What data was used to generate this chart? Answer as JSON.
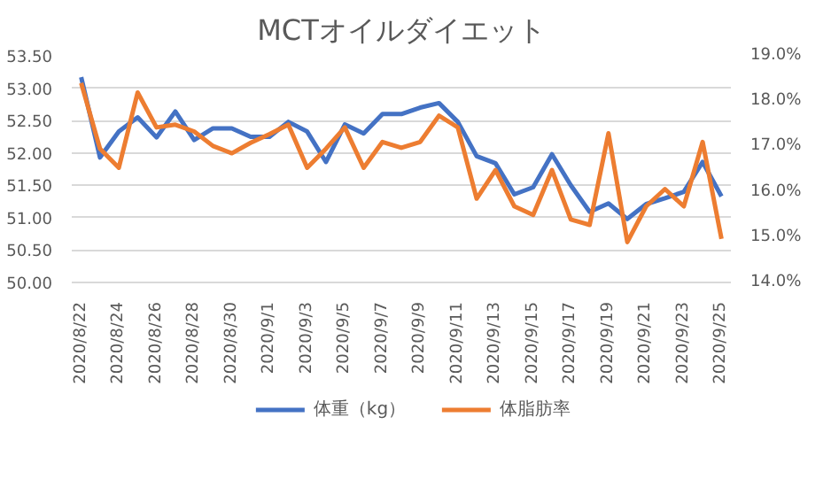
{
  "chart_data": {
    "type": "line",
    "title": "MCTオイルダイエット",
    "categories": [
      "2020/8/22",
      null,
      "2020/8/24",
      null,
      "2020/8/26",
      null,
      "2020/8/28",
      null,
      "2020/8/30",
      null,
      "2020/9/1",
      null,
      "2020/9/3",
      null,
      "2020/9/5",
      null,
      "2020/9/7",
      null,
      "2020/9/9",
      null,
      "2020/9/11",
      null,
      "2020/9/13",
      null,
      "2020/9/15",
      null,
      "2020/9/17",
      null,
      "2020/9/19",
      null,
      "2020/9/21",
      null,
      "2020/9/23",
      null,
      "2020/9/25"
    ],
    "series": [
      {
        "name": "体重（kg）",
        "color": "#4472c4",
        "values": [
          53.17,
          51.93,
          52.33,
          52.55,
          52.24,
          52.64,
          52.2,
          52.38,
          52.38,
          52.25,
          52.25,
          52.48,
          52.33,
          51.86,
          52.44,
          52.3,
          52.6,
          52.6,
          52.7,
          52.77,
          52.48,
          51.95,
          51.84,
          51.36,
          51.47,
          51.98,
          51.5,
          51.09,
          51.22,
          50.98,
          51.21,
          51.3,
          51.4,
          51.86,
          51.33
        ]
      },
      {
        "name": "体脂肪率",
        "color": "#ed7d31",
        "axis": "y2",
        "values": [
          18.4,
          16.95,
          16.53,
          18.19,
          17.42,
          17.48,
          17.33,
          17.01,
          16.85,
          17.08,
          17.27,
          17.48,
          16.53,
          16.95,
          17.42,
          16.53,
          17.1,
          16.97,
          17.1,
          17.68,
          17.42,
          15.85,
          16.48,
          15.68,
          15.49,
          16.48,
          15.39,
          15.27,
          17.29,
          14.89,
          15.68,
          16.06,
          15.68,
          17.1,
          14.96
        ]
      }
    ],
    "ylim": [
      50,
      53.5
    ],
    "yticks": [
      {
        "value": 50,
        "label": "50.00"
      },
      {
        "value": 50.5,
        "label": "50.50"
      },
      {
        "value": 51,
        "label": "51.00"
      },
      {
        "value": 51.5,
        "label": "51.50"
      },
      {
        "value": 52,
        "label": "52.00"
      },
      {
        "value": 52.5,
        "label": "52.50"
      },
      {
        "value": 53,
        "label": "53.00"
      },
      {
        "value": 53.5,
        "label": "53.50"
      }
    ],
    "y2lim": [
      14,
      19
    ],
    "y2ticks": [
      {
        "value": 14,
        "label": "14.0%"
      },
      {
        "value": 15,
        "label": "15.0%"
      },
      {
        "value": 16,
        "label": "16.0%"
      },
      {
        "value": 17,
        "label": "17.0%"
      },
      {
        "value": 18,
        "label": "18.0%"
      },
      {
        "value": 19,
        "label": "19.0%"
      }
    ],
    "grid": "y",
    "legend": "bottom",
    "marker": "none",
    "line_style": "solid"
  }
}
